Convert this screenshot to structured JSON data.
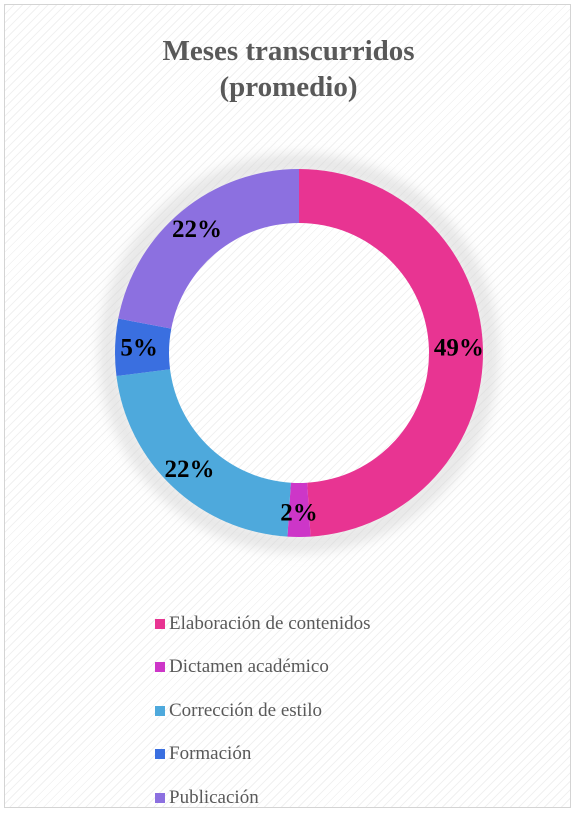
{
  "chart_data": {
    "type": "donut",
    "title_lines": [
      "Meses transcurridos",
      "(promedio)"
    ],
    "categories": [
      "Elaboración de contenidos",
      "Dictamen académico",
      "Corrección de estilo",
      "Formación",
      "Publicación"
    ],
    "values": [
      49,
      2,
      22,
      5,
      22
    ],
    "data_labels": [
      "49%",
      "2%",
      "22%",
      "5%",
      "22%"
    ],
    "colors": [
      "#e83492",
      "#cd36c8",
      "#4ea9dc",
      "#3a6fe0",
      "#8c70e0"
    ],
    "legend_position": "bottom",
    "start_angle_degrees": 0,
    "direction": "clockwise"
  }
}
